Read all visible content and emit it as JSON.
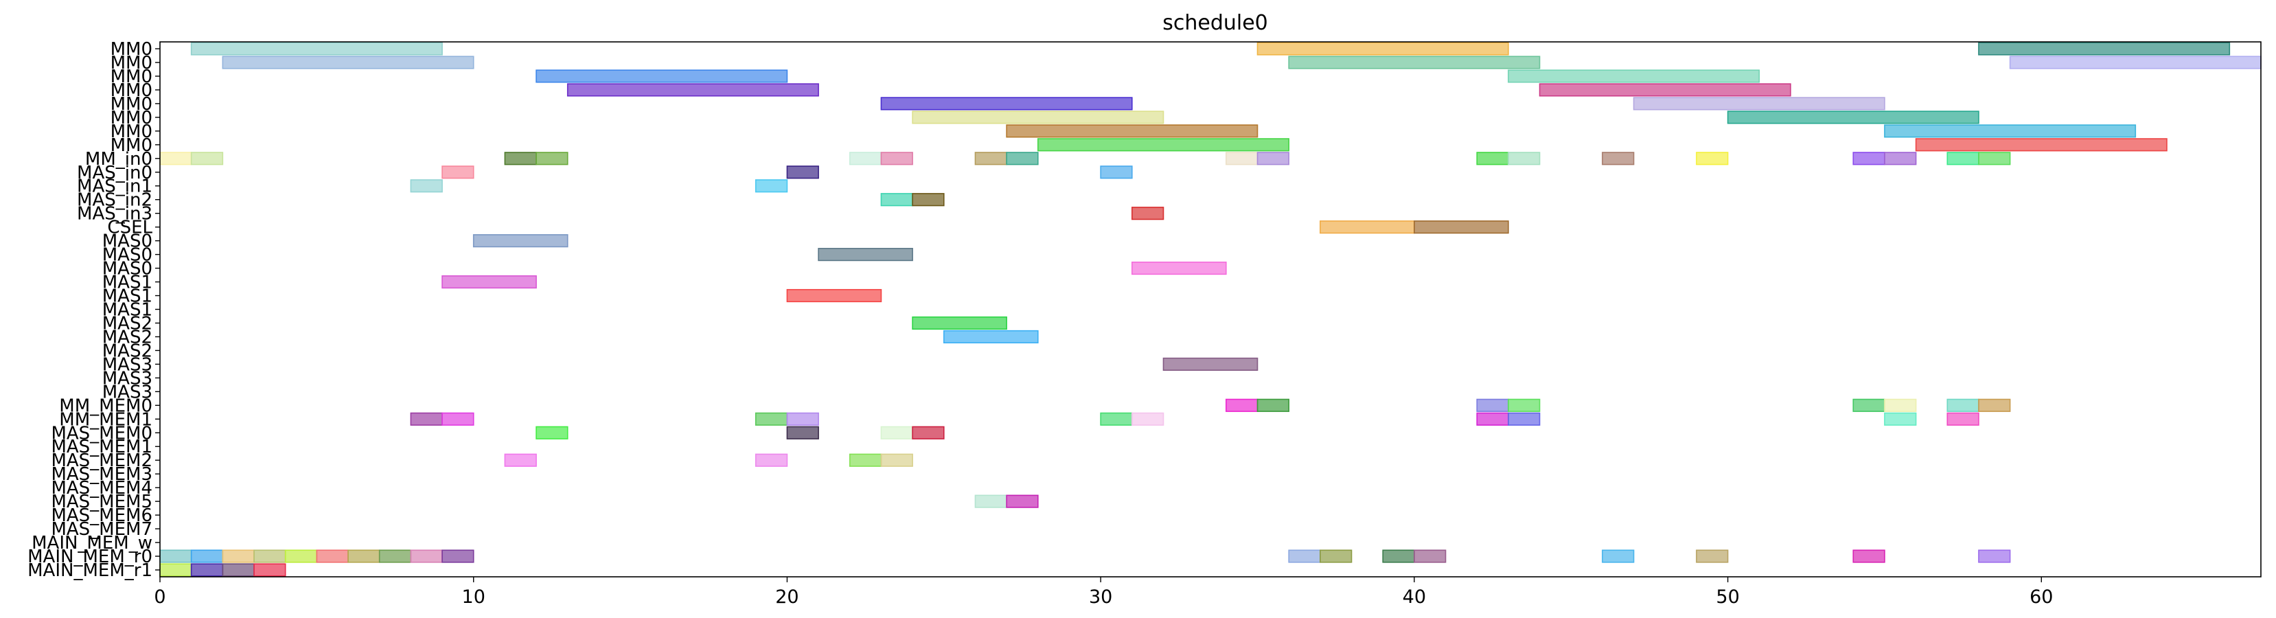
{
  "chart_data": {
    "type": "gantt",
    "title": "schedule0",
    "xlabel": "",
    "ylabel": "",
    "xlim": [
      0,
      67
    ],
    "x_ticks": [
      0,
      10,
      20,
      30,
      40,
      50,
      60
    ],
    "grid": false,
    "rows": [
      "MM0",
      "MM0",
      "MM0",
      "MM0",
      "MM0",
      "MM0",
      "MM0",
      "MM0",
      "MM_in0",
      "MAS_in0",
      "MAS_in1",
      "MAS_in2",
      "MAS_in3",
      "CSEL",
      "MAS0",
      "MAS0",
      "MAS0",
      "MAS1",
      "MAS1",
      "MAS1",
      "MAS2",
      "MAS2",
      "MAS2",
      "MAS3",
      "MAS3",
      "MAS3",
      "MM_MEM0",
      "MM_MEM1",
      "MAS_MEM0",
      "MAS_MEM1",
      "MAS_MEM2",
      "MAS_MEM3",
      "MAS_MEM4",
      "MAS_MEM5",
      "MAS_MEM6",
      "MAS_MEM7",
      "MAIN_MEM_w",
      "MAIN_MEM_r0",
      "MAIN_MEM_r1"
    ],
    "tasks": [
      {
        "row": 0,
        "start": 1,
        "end": 9,
        "color": "#8fd0cc"
      },
      {
        "row": 0,
        "start": 35,
        "end": 43,
        "color": "#f0b545"
      },
      {
        "row": 0,
        "start": 58,
        "end": 66,
        "color": "#2e8b7f"
      },
      {
        "row": 1,
        "start": 2,
        "end": 10,
        "color": "#93b4dc"
      },
      {
        "row": 1,
        "start": 36,
        "end": 44,
        "color": "#6cc49a"
      },
      {
        "row": 1,
        "start": 59,
        "end": 67,
        "color": "#b0aef0"
      },
      {
        "row": 2,
        "start": 12,
        "end": 20,
        "color": "#3d86ea"
      },
      {
        "row": 2,
        "start": 43,
        "end": 51,
        "color": "#74d4b4"
      },
      {
        "row": 3,
        "start": 13,
        "end": 21,
        "color": "#6a2cc8"
      },
      {
        "row": 3,
        "start": 44,
        "end": 52,
        "color": "#cc3c88"
      },
      {
        "row": 4,
        "start": 23,
        "end": 31,
        "color": "#4a2fd0"
      },
      {
        "row": 4,
        "start": 47,
        "end": 55,
        "color": "#b4a8e0"
      },
      {
        "row": 5,
        "start": 24,
        "end": 32,
        "color": "#dce08e"
      },
      {
        "row": 5,
        "start": 50,
        "end": 58,
        "color": "#26a88f"
      },
      {
        "row": 6,
        "start": 27,
        "end": 35,
        "color": "#b4782c"
      },
      {
        "row": 6,
        "start": 55,
        "end": 63,
        "color": "#3ab4dc"
      },
      {
        "row": 7,
        "start": 28,
        "end": 36,
        "color": "#47d647"
      },
      {
        "row": 7,
        "start": 56,
        "end": 64,
        "color": "#ec4646"
      },
      {
        "row": 8,
        "start": 0,
        "end": 1,
        "color": "#f8f0a8"
      },
      {
        "row": 8,
        "start": 1,
        "end": 2,
        "color": "#c8e49c"
      },
      {
        "row": 8,
        "start": 11,
        "end": 12,
        "color": "#4e7a2c"
      },
      {
        "row": 8,
        "start": 12,
        "end": 13,
        "color": "#6aaa3c"
      },
      {
        "row": 8,
        "start": 22,
        "end": 23,
        "color": "#c8eedc"
      },
      {
        "row": 8,
        "start": 23,
        "end": 24,
        "color": "#e07ca8"
      },
      {
        "row": 8,
        "start": 26,
        "end": 27,
        "color": "#b49c5c"
      },
      {
        "row": 8,
        "start": 27,
        "end": 28,
        "color": "#3aa88c"
      },
      {
        "row": 8,
        "start": 34,
        "end": 35,
        "color": "#ece0c8"
      },
      {
        "row": 8,
        "start": 35,
        "end": 36,
        "color": "#a88ad8"
      },
      {
        "row": 8,
        "start": 42,
        "end": 43,
        "color": "#44d844"
      },
      {
        "row": 8,
        "start": 43,
        "end": 44,
        "color": "#a4e0c0"
      },
      {
        "row": 8,
        "start": 46,
        "end": 47,
        "color": "#a87c6c"
      },
      {
        "row": 8,
        "start": 49,
        "end": 50,
        "color": "#f4f040"
      },
      {
        "row": 8,
        "start": 54,
        "end": 55,
        "color": "#8c4cec"
      },
      {
        "row": 8,
        "start": 55,
        "end": 56,
        "color": "#a064d4"
      },
      {
        "row": 8,
        "start": 57,
        "end": 58,
        "color": "#3ce88a"
      },
      {
        "row": 8,
        "start": 58,
        "end": 59,
        "color": "#58dc58"
      },
      {
        "row": 9,
        "start": 9,
        "end": 10,
        "color": "#f8889c"
      },
      {
        "row": 9,
        "start": 20,
        "end": 21,
        "color": "#3a2484"
      },
      {
        "row": 9,
        "start": 30,
        "end": 31,
        "color": "#4aaaec"
      },
      {
        "row": 10,
        "start": 8,
        "end": 9,
        "color": "#94d4d4"
      },
      {
        "row": 10,
        "start": 19,
        "end": 20,
        "color": "#4ac8f0"
      },
      {
        "row": 11,
        "start": 23,
        "end": 24,
        "color": "#3cd4b0"
      },
      {
        "row": 11,
        "start": 24,
        "end": 25,
        "color": "#6c5818"
      },
      {
        "row": 12,
        "start": 31,
        "end": 32,
        "color": "#d83030"
      },
      {
        "row": 13,
        "start": 37,
        "end": 40,
        "color": "#f0ac48"
      },
      {
        "row": 13,
        "start": 40,
        "end": 43,
        "color": "#a06c30"
      },
      {
        "row": 14,
        "start": 10,
        "end": 13,
        "color": "#7c98c4"
      },
      {
        "row": 15,
        "start": 21,
        "end": 24,
        "color": "#5c7888"
      },
      {
        "row": 16,
        "start": 31,
        "end": 34,
        "color": "#f46cdc"
      },
      {
        "row": 17,
        "start": 9,
        "end": 12,
        "color": "#d858d4"
      },
      {
        "row": 18,
        "start": 20,
        "end": 23,
        "color": "#f44444"
      },
      {
        "row": 20,
        "start": 24,
        "end": 27,
        "color": "#2cd444"
      },
      {
        "row": 21,
        "start": 25,
        "end": 28,
        "color": "#3cb0f4"
      },
      {
        "row": 23,
        "start": 32,
        "end": 35,
        "color": "#845c84"
      },
      {
        "row": 26,
        "start": 34,
        "end": 35,
        "color": "#ec28d0"
      },
      {
        "row": 26,
        "start": 35,
        "end": 36,
        "color": "#3c9c3c"
      },
      {
        "row": 26,
        "start": 42,
        "end": 43,
        "color": "#7c7ce0"
      },
      {
        "row": 26,
        "start": 43,
        "end": 44,
        "color": "#5ce05c"
      },
      {
        "row": 26,
        "start": 54,
        "end": 55,
        "color": "#44c864"
      },
      {
        "row": 26,
        "start": 55,
        "end": 56,
        "color": "#ecf0b0"
      },
      {
        "row": 26,
        "start": 57,
        "end": 58,
        "color": "#70d8c4"
      },
      {
        "row": 26,
        "start": 58,
        "end": 59,
        "color": "#c89c50"
      },
      {
        "row": 27,
        "start": 8,
        "end": 9,
        "color": "#9c3ca4"
      },
      {
        "row": 27,
        "start": 9,
        "end": 10,
        "color": "#e03ce0"
      },
      {
        "row": 27,
        "start": 19,
        "end": 20,
        "color": "#58c858"
      },
      {
        "row": 27,
        "start": 20,
        "end": 21,
        "color": "#b088ec"
      },
      {
        "row": 27,
        "start": 30,
        "end": 31,
        "color": "#44dc70"
      },
      {
        "row": 27,
        "start": 31,
        "end": 32,
        "color": "#f4c4ec"
      },
      {
        "row": 27,
        "start": 42,
        "end": 43,
        "color": "#d424d4"
      },
      {
        "row": 27,
        "start": 43,
        "end": 44,
        "color": "#6464e8"
      },
      {
        "row": 27,
        "start": 55,
        "end": 56,
        "color": "#64ecc4"
      },
      {
        "row": 27,
        "start": 57,
        "end": 58,
        "color": "#f04cc4"
      },
      {
        "row": 28,
        "start": 12,
        "end": 13,
        "color": "#44ec44"
      },
      {
        "row": 28,
        "start": 20,
        "end": 21,
        "color": "#3c2c4c"
      },
      {
        "row": 28,
        "start": 23,
        "end": 24,
        "color": "#d8f4d0"
      },
      {
        "row": 28,
        "start": 24,
        "end": 25,
        "color": "#cc2040"
      },
      {
        "row": 30,
        "start": 11,
        "end": 12,
        "color": "#f078ec"
      },
      {
        "row": 30,
        "start": 19,
        "end": 20,
        "color": "#ec88ec"
      },
      {
        "row": 30,
        "start": 22,
        "end": 23,
        "color": "#84e054"
      },
      {
        "row": 30,
        "start": 23,
        "end": 24,
        "color": "#d8d08c"
      },
      {
        "row": 33,
        "start": 26,
        "end": 27,
        "color": "#b4e4d0"
      },
      {
        "row": 33,
        "start": 27,
        "end": 28,
        "color": "#c424b4"
      },
      {
        "row": 37,
        "start": 0,
        "end": 1,
        "color": "#74c4c4"
      },
      {
        "row": 37,
        "start": 1,
        "end": 2,
        "color": "#3aa4ec"
      },
      {
        "row": 37,
        "start": 2,
        "end": 3,
        "color": "#e8c070"
      },
      {
        "row": 37,
        "start": 3,
        "end": 4,
        "color": "#b8c070"
      },
      {
        "row": 37,
        "start": 4,
        "end": 5,
        "color": "#bcec3c"
      },
      {
        "row": 37,
        "start": 5,
        "end": 6,
        "color": "#f07070"
      },
      {
        "row": 37,
        "start": 6,
        "end": 7,
        "color": "#b4a850"
      },
      {
        "row": 37,
        "start": 7,
        "end": 8,
        "color": "#6c9c4c"
      },
      {
        "row": 37,
        "start": 8,
        "end": 9,
        "color": "#d880b4"
      },
      {
        "row": 37,
        "start": 9,
        "end": 10,
        "color": "#7c3c9c"
      },
      {
        "row": 37,
        "start": 36,
        "end": 37,
        "color": "#8ca8e0"
      },
      {
        "row": 37,
        "start": 37,
        "end": 38,
        "color": "#8c9c44"
      },
      {
        "row": 37,
        "start": 39,
        "end": 40,
        "color": "#3c7c4c"
      },
      {
        "row": 37,
        "start": 40,
        "end": 41,
        "color": "#985c8c"
      },
      {
        "row": 37,
        "start": 46,
        "end": 47,
        "color": "#48b4ec"
      },
      {
        "row": 37,
        "start": 49,
        "end": 50,
        "color": "#b8a464"
      },
      {
        "row": 37,
        "start": 54,
        "end": 55,
        "color": "#d824b4"
      },
      {
        "row": 37,
        "start": 58,
        "end": 59,
        "color": "#9c6cec"
      },
      {
        "row": 38,
        "start": 0,
        "end": 1,
        "color": "#b8ec44"
      },
      {
        "row": 38,
        "start": 1,
        "end": 2,
        "color": "#4428a8"
      },
      {
        "row": 38,
        "start": 2,
        "end": 3,
        "color": "#6c4c78"
      },
      {
        "row": 38,
        "start": 3,
        "end": 4,
        "color": "#e82c4c"
      }
    ]
  }
}
